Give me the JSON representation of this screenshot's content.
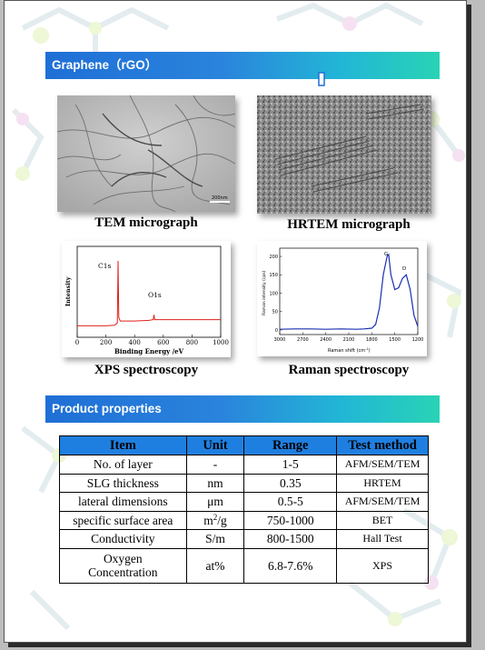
{
  "sections": {
    "graphene_title": "Graphene（rGO）",
    "properties_title": "Product properties"
  },
  "figures": {
    "tem": {
      "caption": "TEM micrograph",
      "scale_label": "200nm"
    },
    "hrtem": {
      "caption": "HRTEM micrograph"
    },
    "xps": {
      "caption": "XPS spectroscopy",
      "peak_labels": [
        "C1s",
        "O1s"
      ],
      "ylabel": "Intensity",
      "xlabel": "Binding Energy /eV",
      "x_ticks": [
        "0",
        "200",
        "400",
        "600",
        "800",
        "1000"
      ],
      "line_color": "#e0201b"
    },
    "raman": {
      "caption": "Raman spectroscopy",
      "peak_labels": [
        "G",
        "D"
      ],
      "ylabel": "Raman intensity (cps)",
      "xlabel": "Raman shift (cm",
      "xlabel_sup": "-1",
      "xlabel_tail": ")",
      "x_ticks": [
        "3000",
        "2700",
        "2400",
        "2100",
        "1800",
        "1500",
        "1200"
      ],
      "y_ticks": [
        "200",
        "150",
        "100",
        "50",
        "0"
      ],
      "line_color": "#1a2fb0"
    }
  },
  "chart_data": [
    {
      "type": "line",
      "title": "",
      "xlabel": "Binding Energy /eV",
      "ylabel": "Intensity",
      "xlim": [
        0,
        1000
      ],
      "x": [
        0,
        100,
        200,
        260,
        280,
        285,
        290,
        300,
        350,
        400,
        500,
        530,
        535,
        540,
        600,
        700,
        800,
        900,
        1000
      ],
      "y": [
        0.06,
        0.06,
        0.06,
        0.07,
        0.1,
        1.0,
        0.18,
        0.13,
        0.13,
        0.13,
        0.14,
        0.15,
        0.22,
        0.15,
        0.15,
        0.15,
        0.15,
        0.15,
        0.15
      ],
      "annotations": [
        "C1s",
        "O1s"
      ]
    },
    {
      "type": "line",
      "title": "",
      "xlabel": "Raman shift (cm-1)",
      "ylabel": "Raman intensity (cps)",
      "xlim": [
        3000,
        1200
      ],
      "ylim": [
        0,
        210
      ],
      "x": [
        3000,
        2800,
        2600,
        2400,
        2200,
        2000,
        1900,
        1800,
        1750,
        1700,
        1650,
        1600,
        1580,
        1550,
        1500,
        1450,
        1400,
        1350,
        1300,
        1250,
        1200
      ],
      "y": [
        2,
        3,
        3,
        2,
        3,
        2,
        3,
        5,
        15,
        60,
        150,
        200,
        205,
        150,
        110,
        115,
        140,
        150,
        110,
        40,
        10
      ],
      "annotations": [
        "G",
        "D"
      ]
    }
  ],
  "table": {
    "headers": [
      "Item",
      "Unit",
      "Range",
      "Test method"
    ],
    "header_color": "#1f7fe0",
    "rows": [
      {
        "item": "No. of layer",
        "unit": "-",
        "range": "1-5",
        "method": "AFM/SEM/TEM"
      },
      {
        "item": "SLG thickness",
        "unit": "nm",
        "range": "0.35",
        "method": "HRTEM"
      },
      {
        "item": "lateral dimensions",
        "unit": "μm",
        "range": "0.5-5",
        "method": "AFM/SEM/TEM"
      },
      {
        "item": "specific surface area",
        "unit": "m",
        "unit_sup": "2",
        "unit_tail": "/g",
        "range": "750-1000",
        "method": "BET"
      },
      {
        "item": "Conductivity",
        "unit": "S/m",
        "range": "800-1500",
        "method": "Hall Test"
      },
      {
        "item_line1": "Oxygen",
        "item_line2": "Concentration",
        "unit": "at%",
        "range": "6.8-7.6%",
        "method": "XPS"
      }
    ]
  }
}
